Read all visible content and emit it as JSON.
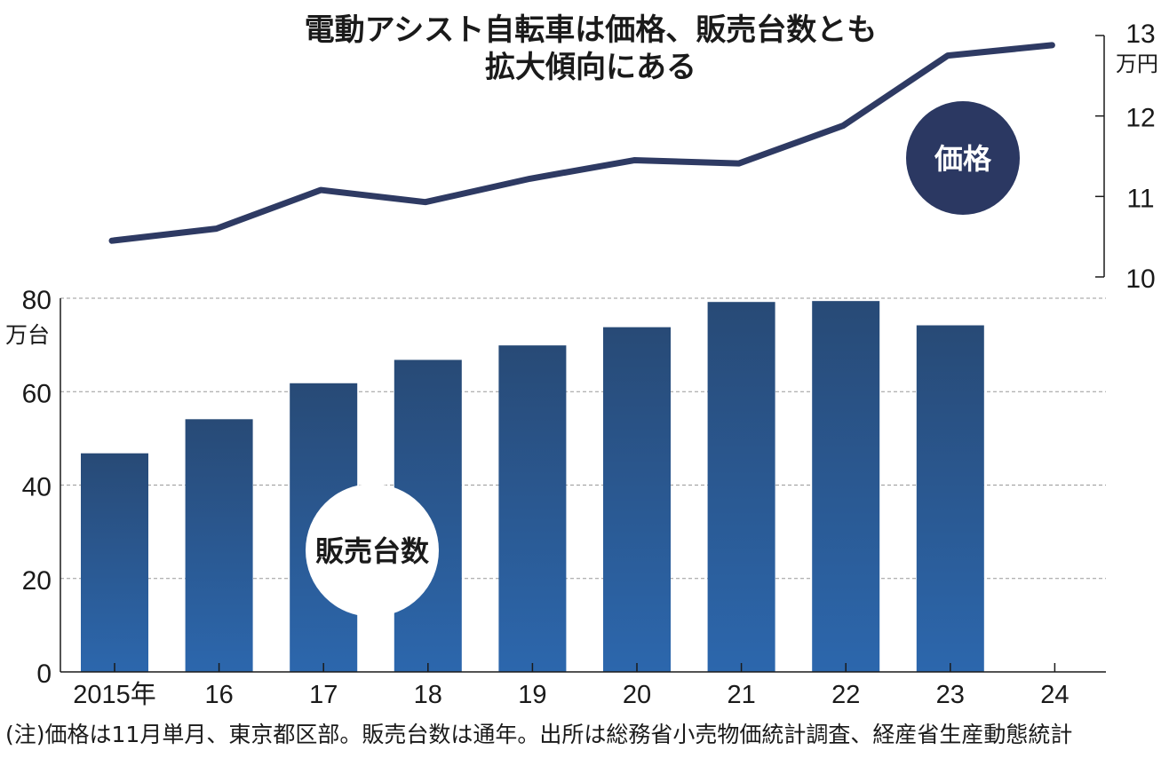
{
  "title": {
    "line1": "電動アシスト自転車は価格、販売台数とも",
    "line2": "拡大傾向にある"
  },
  "note": "(注)価格は11月単月、東京都区部。販売台数は通年。出所は総務省小売物価統計調査、経産省生産動態統計",
  "colors": {
    "price_line": "#2e3a63",
    "price_badge": "#2b3862",
    "bar_top": "#284a76",
    "bar_bottom": "#2c67ad",
    "grid": "#999999",
    "axis": "#1a1a1a"
  },
  "chart_data": [
    {
      "type": "line",
      "name": "price",
      "label": "価格",
      "unit": "万円",
      "x": [
        "2015",
        "16",
        "17",
        "18",
        "19",
        "20",
        "21",
        "22",
        "23",
        "24"
      ],
      "values": [
        10.45,
        10.6,
        11.08,
        10.93,
        11.22,
        11.45,
        11.41,
        11.88,
        12.75,
        12.88
      ],
      "ylim": [
        10,
        13
      ],
      "yticks": [
        "10",
        "11",
        "12",
        "13"
      ],
      "ylabel_position": "right"
    },
    {
      "type": "bar",
      "name": "sales",
      "label": "販売台数",
      "unit": "万台",
      "categories": [
        "2015年",
        "16",
        "17",
        "18",
        "19",
        "20",
        "21",
        "22",
        "23",
        "24"
      ],
      "values": [
        46.8,
        54.1,
        61.8,
        66.8,
        69.9,
        73.8,
        79.2,
        79.4,
        74.2,
        null
      ],
      "ylim": [
        0,
        80
      ],
      "yticks": [
        "0",
        "20",
        "40",
        "60",
        "80"
      ],
      "grid": true,
      "ylabel_position": "left"
    }
  ]
}
